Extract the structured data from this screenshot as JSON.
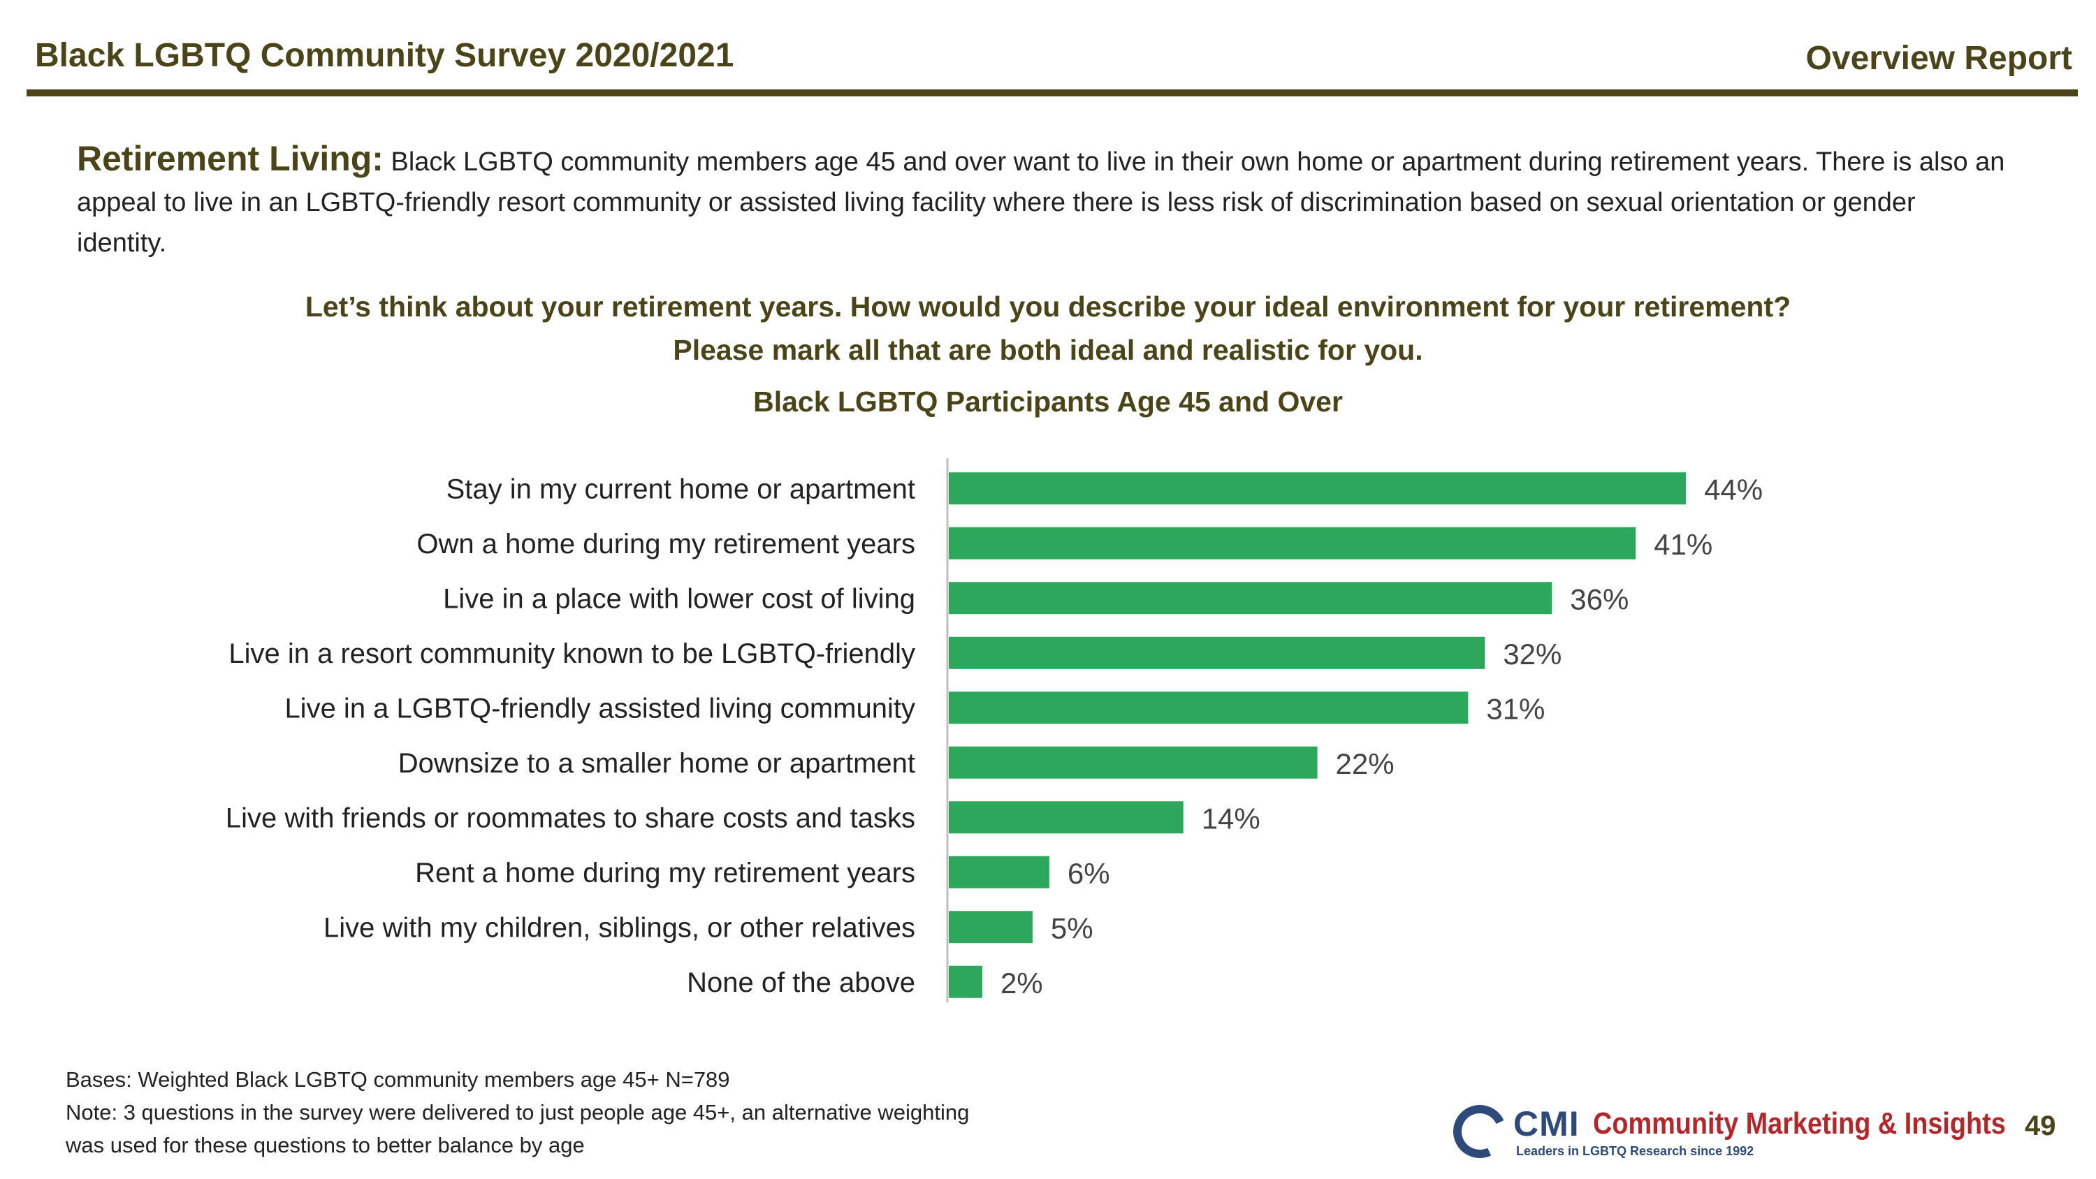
{
  "header": {
    "title": "Black LGBTQ Community Survey 2020/2021",
    "report": "Overview Report"
  },
  "intro": {
    "label": "Retirement Living:",
    "text": " Black LGBTQ community members age 45 and over want to live in their own home or apartment during retirement years. There is also an appeal to live in an LGBTQ-friendly resort community or assisted living facility where there is less risk of discrimination based on sexual orientation or gender identity."
  },
  "question": {
    "line1": "Let’s think about your retirement years. How would you describe your ideal environment for your retirement?",
    "line2": "Please mark all that are both ideal and realistic for you."
  },
  "colors": {
    "bar": "#2ca75c",
    "heading": "#4b4418",
    "axis": "#bfbfbf"
  },
  "chart_data": {
    "type": "bar",
    "orientation": "horizontal",
    "title": "Black LGBTQ Participants Age 45 and Over",
    "categories": [
      "Stay in my current home or apartment",
      "Own a home during my retirement years",
      "Live in a place with lower cost of living",
      "Live in a resort community known to be LGBTQ-friendly",
      "Live in a LGBTQ-friendly assisted living community",
      "Downsize to a smaller home or apartment",
      "Live with friends or roommates to share costs and tasks",
      "Rent a home during my retirement years",
      "Live with my children, siblings, or other relatives",
      "None of the above"
    ],
    "values": [
      44,
      41,
      36,
      32,
      31,
      22,
      14,
      6,
      5,
      2
    ],
    "labels": [
      "44%",
      "41%",
      "36%",
      "32%",
      "31%",
      "22%",
      "14%",
      "6%",
      "5%",
      "2%"
    ],
    "unit": "%",
    "xlim": [
      0,
      50
    ],
    "grid": false,
    "legend": "none"
  },
  "footnote": {
    "line1": "Bases: Weighted Black LGBTQ community members age 45+  N=789",
    "line2": "Note: 3 questions in the survey were delivered to just people age 45+, an alternative weighting",
    "line3": "was used for these questions to better balance by age"
  },
  "logo": {
    "short": "CMI",
    "name": "Community Marketing & Insights",
    "tagline": "Leaders in LGBTQ Research since 1992"
  },
  "page_number": "49"
}
